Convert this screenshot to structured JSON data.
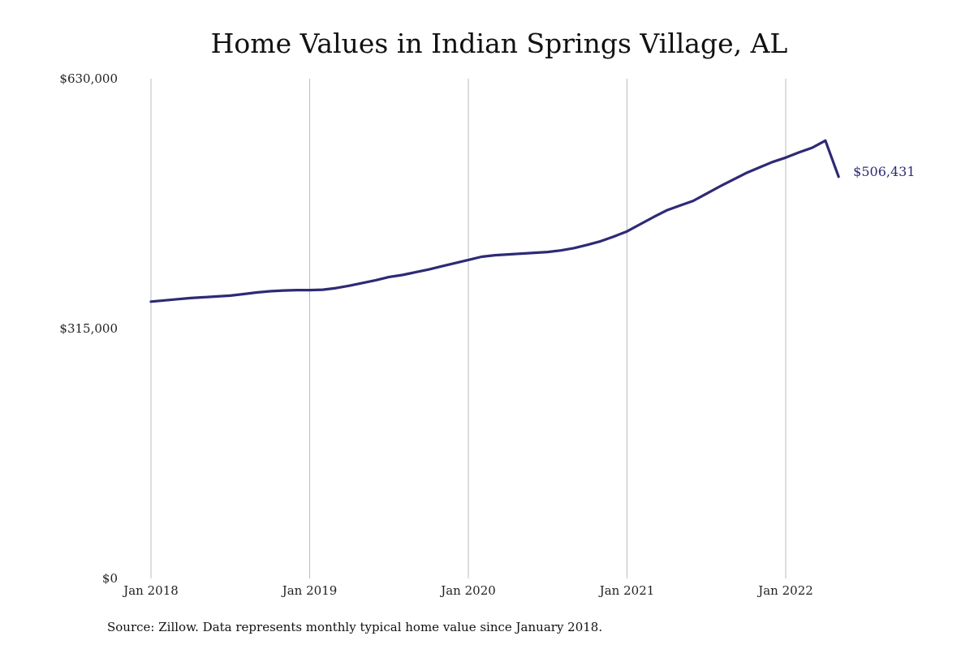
{
  "chart_data": {
    "type": "line",
    "title": "Home Values in Indian Springs Village, AL",
    "xlabel": "",
    "ylabel": "",
    "x_ticks": [
      "Jan 2018",
      "Jan 2019",
      "Jan 2020",
      "Jan 2021",
      "Jan 2022"
    ],
    "y_ticks": [
      "$0",
      "$315,000",
      "$630,000"
    ],
    "ylim": [
      0,
      630000
    ],
    "grid": "vertical lines at year ticks",
    "series_color": "#2e2a75",
    "end_label": "$506,431",
    "series": [
      {
        "x": [
          "2018-01",
          "2018-02",
          "2018-03",
          "2018-04",
          "2018-05",
          "2018-06",
          "2018-07",
          "2018-08",
          "2018-09",
          "2018-10",
          "2018-11",
          "2018-12",
          "2019-01",
          "2019-02",
          "2019-03",
          "2019-04",
          "2019-05",
          "2019-06",
          "2019-07",
          "2019-08",
          "2019-09",
          "2019-10",
          "2019-11",
          "2019-12",
          "2020-01",
          "2020-02",
          "2020-03",
          "2020-04",
          "2020-05",
          "2020-06",
          "2020-07",
          "2020-08",
          "2020-09",
          "2020-10",
          "2020-11",
          "2020-12",
          "2021-01",
          "2021-02",
          "2021-03",
          "2021-04",
          "2021-05",
          "2021-06",
          "2021-07",
          "2021-08",
          "2021-09",
          "2021-10",
          "2021-11",
          "2021-12",
          "2022-01",
          "2022-02",
          "2022-03",
          "2022-04",
          "2022-05"
        ],
        "values": [
          349000,
          350500,
          352000,
          353500,
          354500,
          355500,
          356500,
          358500,
          360500,
          362000,
          363000,
          363500,
          363500,
          364000,
          366000,
          369000,
          372500,
          376000,
          380000,
          382500,
          386000,
          389500,
          393500,
          397500,
          401500,
          405500,
          407500,
          408500,
          409500,
          410500,
          411500,
          413500,
          416500,
          420500,
          425000,
          431000,
          437500,
          446500,
          455500,
          464000,
          470000,
          476000,
          485000,
          494000,
          502500,
          511000,
          518000,
          525000,
          530500,
          537000,
          543000,
          552000,
          506431
        ]
      }
    ]
  },
  "footer": {
    "source": "Source: Zillow. Data represents monthly typical home value since January 2018."
  }
}
